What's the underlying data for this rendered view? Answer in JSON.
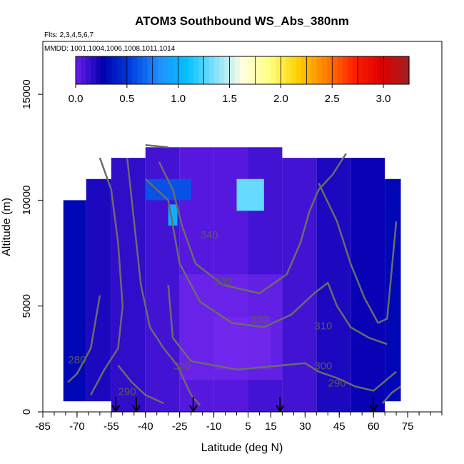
{
  "chart_data": {
    "type": "heatmap",
    "title": "ATOM3 Southbound WS_Abs_380nm",
    "flights_note": "Flts: 2,3,4,5,6,7",
    "dates_note": "MMDD: 1001,1004,1006,1008,1011,1014",
    "xlabel": "Latitude (deg N)",
    "ylabel": "Altitude (m)",
    "xlim": [
      -85,
      90
    ],
    "ylim": [
      0,
      17500
    ],
    "xticks": [
      -85,
      -70,
      -55,
      -40,
      -25,
      -10,
      5,
      15,
      30,
      45,
      60,
      75
    ],
    "yticks": [
      0,
      5000,
      10000,
      15000
    ],
    "colorbar": {
      "min": 0,
      "max": 3.25,
      "ticks": [
        0.0,
        0.5,
        1.0,
        1.5,
        2.0,
        2.5,
        3.0
      ],
      "tick_labels": [
        "0.0",
        "0.5",
        "1.0",
        "1.5",
        "2.0",
        "2.5",
        "3.0"
      ],
      "placement": "top inside plot",
      "colors": [
        "#6a1ee8",
        "#0000b0",
        "#0040e0",
        "#2090ff",
        "#00c0ff",
        "#80e0ff",
        "#ffffe0",
        "#ffff80",
        "#ffd000",
        "#ff8000",
        "#ff2000",
        "#e00000",
        "#a02020"
      ]
    },
    "grid_cells": [
      {
        "lat_range": [
          -76,
          -66
        ],
        "alt_range": [
          500,
          10000
        ],
        "value": 0.3
      },
      {
        "lat_range": [
          -66,
          -55
        ],
        "alt_range": [
          500,
          11000
        ],
        "value": 0.2
      },
      {
        "lat_range": [
          -55,
          -40
        ],
        "alt_range": [
          0,
          12000
        ],
        "value": 0.15
      },
      {
        "lat_range": [
          -40,
          -25
        ],
        "alt_range": [
          0,
          12500
        ],
        "value": 0.1
      },
      {
        "lat_range": [
          -25,
          -10
        ],
        "alt_range": [
          0,
          12500
        ],
        "value": 0.05
      },
      {
        "lat_range": [
          -10,
          5
        ],
        "alt_range": [
          0,
          12500
        ],
        "value": 0.05
      },
      {
        "lat_range": [
          5,
          20
        ],
        "alt_range": [
          0,
          12500
        ],
        "value": 0.1
      },
      {
        "lat_range": [
          20,
          35
        ],
        "alt_range": [
          0,
          12000
        ],
        "value": 0.1
      },
      {
        "lat_range": [
          35,
          50
        ],
        "alt_range": [
          0,
          12000
        ],
        "value": 0.2
      },
      {
        "lat_range": [
          50,
          65
        ],
        "alt_range": [
          0,
          12000
        ],
        "value": 0.25
      },
      {
        "lat_range": [
          65,
          72
        ],
        "alt_range": [
          500,
          11000
        ],
        "value": 0.3
      }
    ],
    "highlights": [
      {
        "lat_range": [
          0,
          12
        ],
        "alt_range": [
          9500,
          11000
        ],
        "value": 1.3
      },
      {
        "lat_range": [
          -30,
          -26
        ],
        "alt_range": [
          8800,
          9800
        ],
        "value": 1.0
      },
      {
        "lat_range": [
          -40,
          -20
        ],
        "alt_range": [
          10000,
          11000
        ],
        "value": 0.6
      }
    ],
    "contour_labels": [
      {
        "text": "340",
        "lat": -12,
        "alt": 8200
      },
      {
        "text": "330",
        "lat": -6,
        "alt": 6000
      },
      {
        "text": "320",
        "lat": 10,
        "alt": 4200
      },
      {
        "text": "310",
        "lat": 38,
        "alt": 3900
      },
      {
        "text": "300",
        "lat": -24,
        "alt": 2000
      },
      {
        "text": "300",
        "lat": 38,
        "alt": 2000
      },
      {
        "text": "290",
        "lat": -48,
        "alt": 800
      },
      {
        "text": "290",
        "lat": 44,
        "alt": 1200
      },
      {
        "text": "280",
        "lat": -70,
        "alt": 2300
      }
    ],
    "arrows": [
      {
        "lat": -53,
        "label": ""
      },
      {
        "lat": -44,
        "label": ""
      },
      {
        "lat": -19,
        "label": ""
      },
      {
        "lat": 19,
        "label": ""
      },
      {
        "lat": 60,
        "label": ""
      }
    ]
  }
}
